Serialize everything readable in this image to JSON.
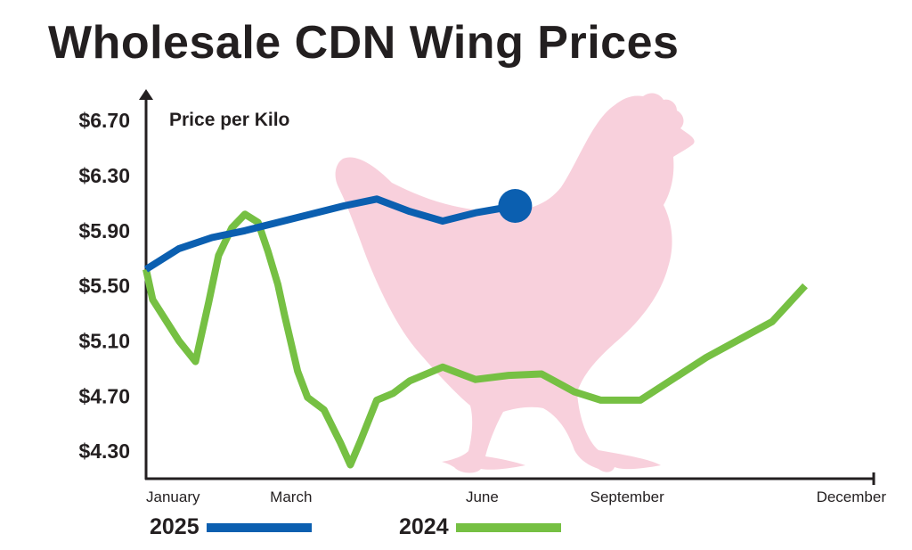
{
  "chart_data": {
    "type": "line",
    "title": "Wholesale CDN Wing Prices",
    "ylabel": "Price per Kilo",
    "xlabel": "",
    "ylim": [
      4.1,
      6.85
    ],
    "yticks": [
      "$6.70",
      "$6.30",
      "$5.90",
      "$5.50",
      "$5.10",
      "$4.70",
      "$4.30"
    ],
    "ytick_values": [
      6.7,
      6.3,
      5.9,
      5.5,
      5.1,
      4.7,
      4.3
    ],
    "xlim": [
      1,
      12
    ],
    "xticks": [
      "January",
      "March",
      "June",
      "September",
      "December"
    ],
    "xtick_values": [
      1,
      3.2,
      6.1,
      8.3,
      11.7
    ],
    "background_icon": "chicken-silhouette",
    "series": [
      {
        "name": "2025",
        "color": "#0b5fb0",
        "x": [
          1.0,
          1.5,
          2.0,
          2.5,
          3.0,
          3.5,
          4.0,
          4.5,
          5.0,
          5.5,
          6.0,
          6.6
        ],
        "y": [
          5.62,
          5.77,
          5.85,
          5.9,
          5.96,
          6.02,
          6.08,
          6.13,
          6.04,
          5.97,
          6.03,
          6.08
        ],
        "end_marker": true
      },
      {
        "name": "2024",
        "color": "#76c043",
        "x": [
          1.0,
          1.1,
          1.3,
          1.5,
          1.75,
          1.95,
          2.1,
          2.3,
          2.5,
          2.7,
          2.85,
          3.0,
          3.1,
          3.3,
          3.45,
          3.7,
          3.95,
          4.1,
          4.25,
          4.5,
          4.75,
          5.0,
          5.5,
          6.0,
          6.5,
          7.0,
          7.5,
          7.9,
          8.5,
          9.5,
          10.5,
          11.0
        ],
        "y": [
          5.62,
          5.4,
          5.25,
          5.1,
          4.95,
          5.38,
          5.72,
          5.92,
          6.02,
          5.96,
          5.75,
          5.51,
          5.29,
          4.88,
          4.69,
          4.6,
          4.36,
          4.2,
          4.37,
          4.67,
          4.72,
          4.81,
          4.91,
          4.82,
          4.85,
          4.86,
          4.73,
          4.67,
          4.67,
          4.98,
          5.24,
          5.5
        ]
      }
    ],
    "legend": [
      {
        "label": "2025",
        "color": "#0b5fb0"
      },
      {
        "label": "2024",
        "color": "#76c043"
      }
    ],
    "grid": false,
    "legend_position": "bottom"
  }
}
